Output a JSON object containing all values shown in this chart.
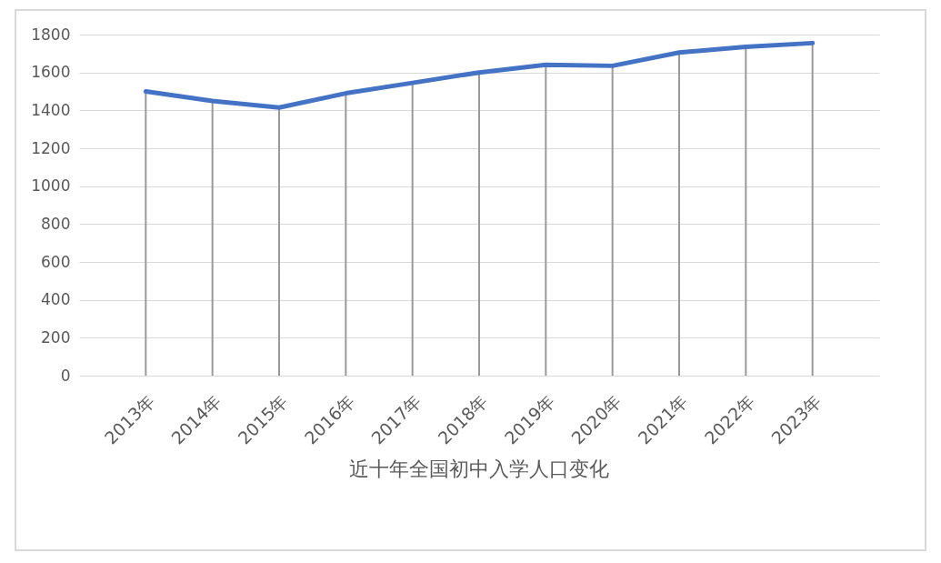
{
  "chart_data": {
    "type": "line",
    "title": "近十年全国初中入学人口变化",
    "categories": [
      "2013年",
      "2014年",
      "2015年",
      "2016年",
      "2017年",
      "2018年",
      "2019年",
      "2020年",
      "2021年",
      "2022年",
      "2023年"
    ],
    "series": [
      {
        "color": "#4472c4",
        "values": [
          1500,
          1450,
          1415,
          1490,
          1545,
          1600,
          1640,
          1635,
          1705,
          1735,
          1755
        ]
      }
    ],
    "ylim": [
      0,
      1800
    ],
    "yticks": [
      0,
      200,
      400,
      600,
      800,
      1000,
      1200,
      1400,
      1600,
      1800
    ],
    "grid": true,
    "legend": false,
    "marker": "none",
    "line_style": "solid"
  }
}
